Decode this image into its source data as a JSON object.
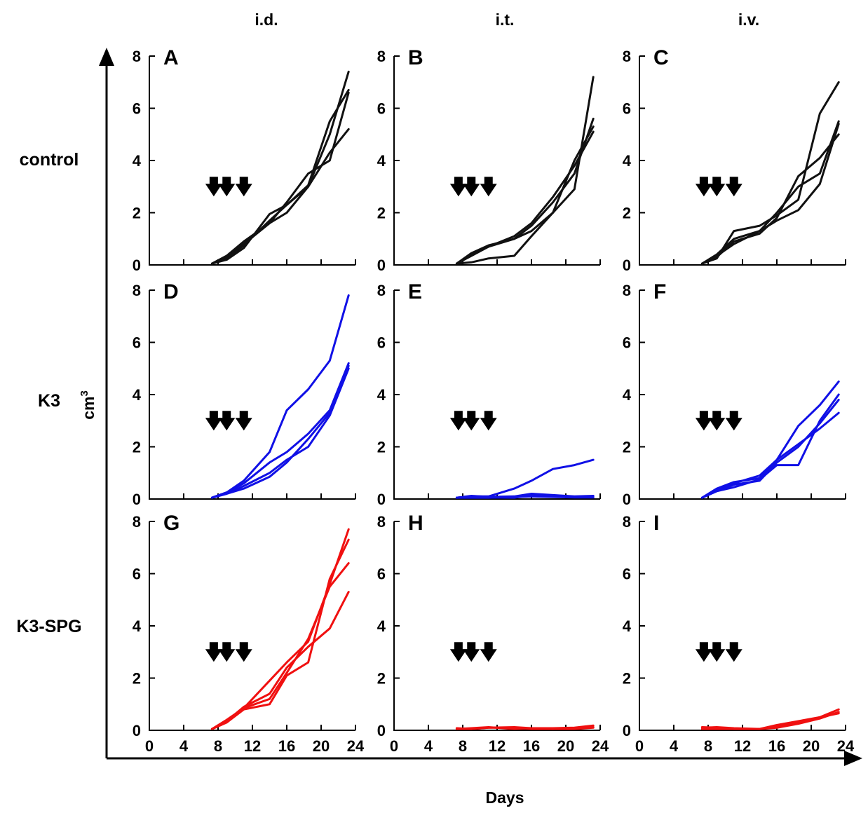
{
  "column_headers": [
    "i.d.",
    "i.t.",
    "i.v."
  ],
  "row_labels": [
    "control",
    "K3",
    "K3-SPG"
  ],
  "colors": {
    "control": "#111111",
    "K3": "#1010e6",
    "K3-SPG": "#f01010",
    "arrow": "#000000"
  },
  "axes": {
    "xlabel": "Days",
    "ylabel_base": "cm",
    "ylabel_sup": "3",
    "xlim": [
      0,
      24
    ],
    "ylim": [
      0,
      8
    ],
    "xticks": [
      0,
      4,
      8,
      12,
      16,
      20,
      24
    ],
    "yticks": [
      0,
      2,
      4,
      6,
      8
    ]
  },
  "treatment_days": [
    7.5,
    9,
    11
  ],
  "chart_data": [
    {
      "panel": "A",
      "row": 0,
      "col": 0,
      "type": "line",
      "group": "control",
      "route": "i.d.",
      "xlim": [
        0,
        24
      ],
      "ylim": [
        0,
        8
      ],
      "series": [
        {
          "x": [
            7.3,
            9,
            11,
            14,
            16,
            18.5,
            21,
            23.2
          ],
          "y": [
            0.05,
            0.3,
            0.8,
            1.6,
            2.0,
            3.0,
            4.3,
            5.2
          ]
        },
        {
          "x": [
            7.3,
            9,
            11,
            14,
            16,
            18.5,
            21,
            23.2
          ],
          "y": [
            0.05,
            0.35,
            0.9,
            1.6,
            2.4,
            3.5,
            4.0,
            6.6
          ]
        },
        {
          "x": [
            7.3,
            9,
            11,
            14,
            16,
            18.5,
            21,
            23.2
          ],
          "y": [
            0.05,
            0.2,
            0.65,
            1.95,
            2.3,
            3.0,
            5.0,
            7.4
          ]
        },
        {
          "x": [
            7.3,
            9,
            11,
            14,
            16,
            18.5,
            21,
            23.2
          ],
          "y": [
            0.05,
            0.25,
            0.75,
            1.7,
            2.3,
            3.05,
            5.5,
            6.7
          ]
        }
      ]
    },
    {
      "panel": "B",
      "row": 0,
      "col": 1,
      "type": "line",
      "group": "control",
      "route": "i.t.",
      "xlim": [
        0,
        24
      ],
      "ylim": [
        0,
        8
      ],
      "series": [
        {
          "x": [
            7.3,
            9,
            11,
            14,
            16,
            18.5,
            21,
            23.2
          ],
          "y": [
            0.05,
            0.1,
            0.25,
            0.35,
            1.1,
            2.0,
            2.9,
            7.2
          ]
        },
        {
          "x": [
            7.3,
            9,
            11,
            14,
            16,
            18.5,
            21,
            23.2
          ],
          "y": [
            0.05,
            0.35,
            0.7,
            1.1,
            1.6,
            2.6,
            3.8,
            5.1
          ]
        },
        {
          "x": [
            7.3,
            9,
            11,
            14,
            16,
            18.5,
            21,
            23.2
          ],
          "y": [
            0.05,
            0.4,
            0.7,
            1.0,
            1.5,
            2.4,
            3.5,
            5.6
          ]
        },
        {
          "x": [
            7.3,
            9,
            11,
            14,
            16,
            18.5,
            21,
            23.2
          ],
          "y": [
            0.05,
            0.45,
            0.75,
            1.0,
            1.3,
            2.0,
            4.0,
            5.3
          ]
        }
      ]
    },
    {
      "panel": "C",
      "row": 0,
      "col": 2,
      "type": "line",
      "group": "control",
      "route": "i.v.",
      "xlim": [
        0,
        24
      ],
      "ylim": [
        0,
        8
      ],
      "series": [
        {
          "x": [
            7.3,
            9,
            11,
            14,
            16,
            18.5,
            21,
            23.2
          ],
          "y": [
            0.05,
            0.3,
            0.9,
            1.2,
            1.8,
            3.4,
            4.1,
            5.0
          ]
        },
        {
          "x": [
            7.3,
            9,
            11,
            14,
            16,
            18.5,
            21,
            23.2
          ],
          "y": [
            0.05,
            0.25,
            1.3,
            1.5,
            1.9,
            2.5,
            5.8,
            7.0
          ]
        },
        {
          "x": [
            7.3,
            9,
            11,
            14,
            16,
            18.5,
            21,
            23.2
          ],
          "y": [
            0.05,
            0.4,
            1.0,
            1.3,
            2.0,
            3.0,
            3.5,
            5.5
          ]
        },
        {
          "x": [
            7.3,
            9,
            11,
            14,
            16,
            18.5,
            21,
            23.2
          ],
          "y": [
            0.05,
            0.35,
            0.8,
            1.3,
            1.7,
            2.1,
            3.1,
            5.4
          ]
        }
      ]
    },
    {
      "panel": "D",
      "row": 1,
      "col": 0,
      "type": "line",
      "group": "K3",
      "route": "i.d.",
      "xlim": [
        0,
        24
      ],
      "ylim": [
        0,
        8
      ],
      "series": [
        {
          "x": [
            7.3,
            9,
            11,
            14,
            16,
            18.5,
            21,
            23.2
          ],
          "y": [
            0.05,
            0.25,
            0.7,
            1.8,
            3.4,
            4.2,
            5.3,
            7.8
          ]
        },
        {
          "x": [
            7.3,
            9,
            11,
            14,
            16,
            18.5,
            21,
            23.2
          ],
          "y": [
            0.05,
            0.25,
            0.6,
            1.4,
            1.8,
            2.5,
            3.4,
            5.2
          ]
        },
        {
          "x": [
            7.3,
            9,
            11,
            14,
            16,
            18.5,
            21,
            23.2
          ],
          "y": [
            0.05,
            0.2,
            0.5,
            1.0,
            1.5,
            2.0,
            3.2,
            5.0
          ]
        },
        {
          "x": [
            7.3,
            9,
            11,
            14,
            16,
            18.5,
            21,
            23.2
          ],
          "y": [
            0.05,
            0.2,
            0.4,
            0.85,
            1.4,
            2.3,
            3.3,
            5.1
          ]
        }
      ]
    },
    {
      "panel": "E",
      "row": 1,
      "col": 1,
      "type": "line",
      "group": "K3",
      "route": "i.t.",
      "xlim": [
        0,
        24
      ],
      "ylim": [
        0,
        8
      ],
      "series": [
        {
          "x": [
            7.3,
            9,
            11,
            14,
            16,
            18.5,
            21,
            23.2
          ],
          "y": [
            0.05,
            0.1,
            0.1,
            0.4,
            0.7,
            1.15,
            1.3,
            1.5
          ]
        },
        {
          "x": [
            7.3,
            9,
            11,
            14,
            16,
            18.5,
            21,
            23.2
          ],
          "y": [
            0.05,
            0.12,
            0.08,
            0.1,
            0.2,
            0.15,
            0.1,
            0.12
          ]
        },
        {
          "x": [
            7.3,
            9,
            11,
            14,
            16,
            18.5,
            21,
            23.2
          ],
          "y": [
            0.05,
            0.05,
            0.05,
            0.08,
            0.1,
            0.08,
            0.06,
            0.06
          ]
        },
        {
          "x": [
            7.3,
            9,
            11,
            14,
            16,
            18.5,
            21,
            23.2
          ],
          "y": [
            0.05,
            0.08,
            0.06,
            0.05,
            0.15,
            0.1,
            0.08,
            0.08
          ]
        }
      ]
    },
    {
      "panel": "F",
      "row": 1,
      "col": 2,
      "type": "line",
      "group": "K3",
      "route": "i.v.",
      "xlim": [
        0,
        24
      ],
      "ylim": [
        0,
        8
      ],
      "series": [
        {
          "x": [
            7.3,
            9,
            11,
            14,
            16,
            18.5,
            21,
            23.2
          ],
          "y": [
            0.05,
            0.35,
            0.6,
            0.9,
            1.5,
            2.8,
            3.6,
            4.5
          ]
        },
        {
          "x": [
            7.3,
            9,
            11,
            14,
            16,
            18.5,
            21,
            23.2
          ],
          "y": [
            0.05,
            0.3,
            0.45,
            0.75,
            1.3,
            1.3,
            3.0,
            4.0
          ]
        },
        {
          "x": [
            7.3,
            9,
            11,
            14,
            16,
            18.5,
            21,
            23.2
          ],
          "y": [
            0.05,
            0.4,
            0.65,
            0.8,
            1.5,
            2.1,
            2.7,
            3.3
          ]
        },
        {
          "x": [
            7.3,
            9,
            11,
            14,
            16,
            18.5,
            21,
            23.2
          ],
          "y": [
            0.05,
            0.3,
            0.55,
            0.7,
            1.4,
            2.0,
            2.9,
            3.8
          ]
        }
      ]
    },
    {
      "panel": "G",
      "row": 2,
      "col": 0,
      "type": "line",
      "group": "K3-SPG",
      "route": "i.d.",
      "xlim": [
        0,
        24
      ],
      "ylim": [
        0,
        8
      ],
      "series": [
        {
          "x": [
            7.3,
            9,
            11,
            14,
            16,
            18.5,
            21,
            23.2
          ],
          "y": [
            0.05,
            0.4,
            0.85,
            1.9,
            2.6,
            3.4,
            5.6,
            7.7
          ]
        },
        {
          "x": [
            7.3,
            9,
            11,
            14,
            16,
            18.5,
            21,
            23.2
          ],
          "y": [
            0.05,
            0.3,
            0.8,
            1.0,
            2.1,
            2.6,
            5.8,
            7.3
          ]
        },
        {
          "x": [
            7.3,
            9,
            11,
            14,
            16,
            18.5,
            21,
            23.2
          ],
          "y": [
            0.05,
            0.35,
            0.9,
            1.4,
            2.4,
            3.2,
            3.9,
            5.3
          ]
        },
        {
          "x": [
            7.3,
            9,
            11,
            14,
            16,
            18.5,
            21,
            23.2
          ],
          "y": [
            0.05,
            0.3,
            0.85,
            1.2,
            2.2,
            3.5,
            5.5,
            6.4
          ]
        }
      ]
    },
    {
      "panel": "H",
      "row": 2,
      "col": 1,
      "type": "line",
      "group": "K3-SPG",
      "route": "i.t.",
      "xlim": [
        0,
        24
      ],
      "ylim": [
        0,
        8
      ],
      "series": [
        {
          "x": [
            7.3,
            9,
            11,
            14,
            16,
            18.5,
            21,
            23.2
          ],
          "y": [
            0.08,
            0.05,
            0.1,
            0.12,
            0.08,
            0.08,
            0.1,
            0.18
          ]
        },
        {
          "x": [
            7.3,
            9,
            11,
            14,
            16,
            18.5,
            21,
            23.2
          ],
          "y": [
            0.05,
            0.05,
            0.1,
            0.1,
            0.05,
            0.05,
            0.05,
            0.1
          ]
        },
        {
          "x": [
            7.3,
            9,
            11,
            14,
            16,
            18.5,
            21,
            23.2
          ],
          "y": [
            0.05,
            0.08,
            0.12,
            0.05,
            0.08,
            0.05,
            0.08,
            0.12
          ]
        }
      ]
    },
    {
      "panel": "I",
      "row": 2,
      "col": 2,
      "type": "line",
      "group": "K3-SPG",
      "route": "i.v.",
      "xlim": [
        0,
        24
      ],
      "ylim": [
        0,
        8
      ],
      "series": [
        {
          "x": [
            7.3,
            9,
            11,
            14,
            16,
            18.5,
            21,
            23.2
          ],
          "y": [
            0.12,
            0.1,
            0.05,
            0.05,
            0.2,
            0.35,
            0.5,
            0.8
          ]
        },
        {
          "x": [
            7.3,
            9,
            11,
            14,
            16,
            18.5,
            21,
            23.2
          ],
          "y": [
            0.1,
            0.12,
            0.08,
            0.05,
            0.1,
            0.25,
            0.45,
            0.7
          ]
        },
        {
          "x": [
            7.3,
            9,
            11,
            14,
            16,
            18.5,
            21,
            23.2
          ],
          "y": [
            0.05,
            0.05,
            0.05,
            0.05,
            0.15,
            0.3,
            0.5,
            0.65
          ]
        }
      ]
    }
  ]
}
